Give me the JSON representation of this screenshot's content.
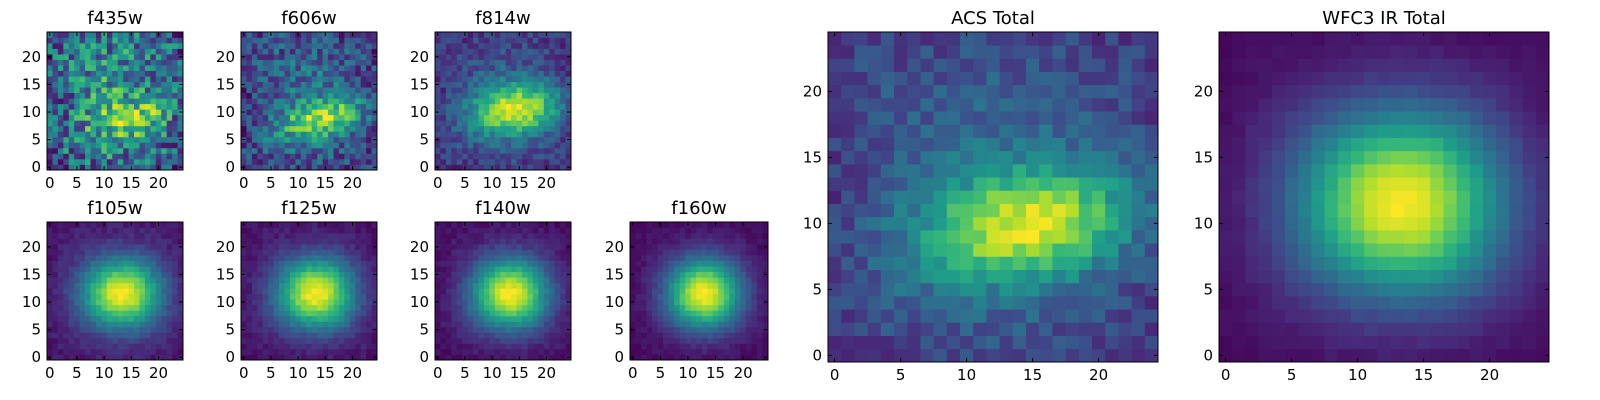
{
  "figure": {
    "colormap": "viridis",
    "colors": {
      "viridis_stops": [
        "#440154",
        "#482878",
        "#3e4a89",
        "#31688e",
        "#26828e",
        "#1f9e89",
        "#35b779",
        "#6ece58",
        "#b5de2b",
        "#fde725"
      ]
    }
  },
  "chart_data": [
    {
      "type": "heatmap",
      "title": "f435w",
      "grid": {
        "nx": 25,
        "ny": 25
      },
      "x_ticks": [
        0,
        5,
        10,
        15,
        20
      ],
      "y_ticks": [
        0,
        5,
        10,
        15,
        20
      ],
      "xlim": [
        -0.5,
        24.5
      ],
      "ylim": [
        -0.5,
        24.5
      ],
      "model": {
        "cx": 16,
        "cy": 9,
        "sx": 5,
        "sy": 2.2,
        "tilt": 0.15,
        "base": 0.55,
        "amp": 0.35,
        "noise": 0.6,
        "seed": 11
      }
    },
    {
      "type": "heatmap",
      "title": "f606w",
      "grid": {
        "nx": 25,
        "ny": 25
      },
      "x_ticks": [
        0,
        5,
        10,
        15,
        20
      ],
      "y_ticks": [
        0,
        5,
        10,
        15,
        20
      ],
      "xlim": [
        -0.5,
        24.5
      ],
      "ylim": [
        -0.5,
        24.5
      ],
      "model": {
        "cx": 15,
        "cy": 9,
        "sx": 6,
        "sy": 2.4,
        "tilt": 0.2,
        "base": 0.38,
        "amp": 0.55,
        "noise": 0.38,
        "seed": 23
      }
    },
    {
      "type": "heatmap",
      "title": "f814w",
      "grid": {
        "nx": 25,
        "ny": 25
      },
      "x_ticks": [
        0,
        5,
        10,
        15,
        20
      ],
      "y_ticks": [
        0,
        5,
        10,
        15,
        20
      ],
      "xlim": [
        -0.5,
        24.5
      ],
      "ylim": [
        -0.5,
        24.5
      ],
      "model": {
        "cx": 15,
        "cy": 10.5,
        "sx": 6.5,
        "sy": 3.2,
        "tilt": 0.1,
        "base": 0.3,
        "amp": 0.7,
        "noise": 0.22,
        "seed": 37
      }
    },
    {
      "type": "heatmap",
      "title": "f105w",
      "grid": {
        "nx": 25,
        "ny": 25
      },
      "x_ticks": [
        0,
        5,
        10,
        15,
        20
      ],
      "y_ticks": [
        0,
        5,
        10,
        15,
        20
      ],
      "xlim": [
        -0.5,
        24.5
      ],
      "ylim": [
        -0.5,
        24.5
      ],
      "model": {
        "cx": 13.5,
        "cy": 11.5,
        "sx": 5.5,
        "sy": 4.5,
        "tilt": 0,
        "base": 0.12,
        "amp": 0.88,
        "noise": 0.08,
        "seed": 41
      }
    },
    {
      "type": "heatmap",
      "title": "f125w",
      "grid": {
        "nx": 25,
        "ny": 25
      },
      "x_ticks": [
        0,
        5,
        10,
        15,
        20
      ],
      "y_ticks": [
        0,
        5,
        10,
        15,
        20
      ],
      "xlim": [
        -0.5,
        24.5
      ],
      "ylim": [
        -0.5,
        24.5
      ],
      "model": {
        "cx": 13.5,
        "cy": 11.5,
        "sx": 5.4,
        "sy": 4.6,
        "tilt": 0,
        "base": 0.1,
        "amp": 0.9,
        "noise": 0.08,
        "seed": 53
      }
    },
    {
      "type": "heatmap",
      "title": "f140w",
      "grid": {
        "nx": 25,
        "ny": 25
      },
      "x_ticks": [
        0,
        5,
        10,
        15,
        20
      ],
      "y_ticks": [
        0,
        5,
        10,
        15,
        20
      ],
      "xlim": [
        -0.5,
        24.5
      ],
      "ylim": [
        -0.5,
        24.5
      ],
      "model": {
        "cx": 13.5,
        "cy": 11.5,
        "sx": 5.3,
        "sy": 4.6,
        "tilt": 0,
        "base": 0.08,
        "amp": 0.92,
        "noise": 0.07,
        "seed": 67
      }
    },
    {
      "type": "heatmap",
      "title": "f160w",
      "grid": {
        "nx": 25,
        "ny": 25
      },
      "x_ticks": [
        0,
        5,
        10,
        15,
        20
      ],
      "y_ticks": [
        0,
        5,
        10,
        15,
        20
      ],
      "xlim": [
        -0.5,
        24.5
      ],
      "ylim": [
        -0.5,
        24.5
      ],
      "model": {
        "cx": 13,
        "cy": 11.5,
        "sx": 5.0,
        "sy": 4.6,
        "tilt": 0,
        "base": 0.06,
        "amp": 0.94,
        "noise": 0.06,
        "seed": 79
      }
    },
    {
      "type": "heatmap",
      "title": "ACS Total",
      "grid": {
        "nx": 25,
        "ny": 25
      },
      "x_ticks": [
        0,
        5,
        10,
        15,
        20
      ],
      "y_ticks": [
        0,
        5,
        10,
        15,
        20
      ],
      "xlim": [
        -0.5,
        24.5
      ],
      "ylim": [
        -0.5,
        24.5
      ],
      "model": {
        "cx": 15.5,
        "cy": 10,
        "sx": 6.5,
        "sy": 2.9,
        "tilt": 0.12,
        "base": 0.35,
        "amp": 0.65,
        "noise": 0.18,
        "seed": 97
      }
    },
    {
      "type": "heatmap",
      "title": "WFC3 IR Total",
      "grid": {
        "nx": 25,
        "ny": 25
      },
      "x_ticks": [
        0,
        5,
        10,
        15,
        20
      ],
      "y_ticks": [
        0,
        5,
        10,
        15,
        20
      ],
      "xlim": [
        -0.5,
        24.5
      ],
      "ylim": [
        -0.5,
        24.5
      ],
      "model": {
        "cx": 13.5,
        "cy": 11.5,
        "sx": 6.0,
        "sy": 5.2,
        "tilt": 0,
        "base": 0.05,
        "amp": 0.95,
        "noise": 0.03,
        "seed": 113
      }
    }
  ]
}
